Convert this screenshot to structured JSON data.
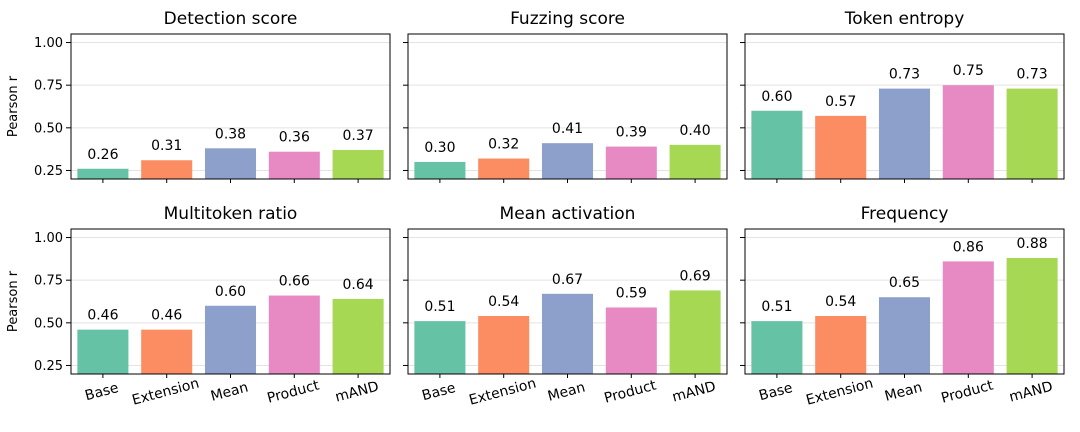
{
  "figure": {
    "y_axis_label": "Pearson r",
    "yticks": [
      "0.25",
      "0.50",
      "0.75",
      "1.00"
    ],
    "categories": [
      "Base",
      "Extension",
      "Mean",
      "Product",
      "mAND"
    ],
    "bar_colors": [
      "#66c2a5",
      "#fc8d62",
      "#8da0cb",
      "#e78ac3",
      "#a6d854"
    ]
  },
  "chart_data": [
    {
      "type": "bar",
      "title": "Detection score",
      "categories": [
        "Base",
        "Extension",
        "Mean",
        "Product",
        "mAND"
      ],
      "values": [
        0.26,
        0.31,
        0.38,
        0.36,
        0.37
      ],
      "labels": [
        "0.26",
        "0.31",
        "0.38",
        "0.36",
        "0.37"
      ],
      "ylabel": "Pearson r",
      "ylim": [
        0.2,
        1.05
      ],
      "grid": true
    },
    {
      "type": "bar",
      "title": "Fuzzing score",
      "categories": [
        "Base",
        "Extension",
        "Mean",
        "Product",
        "mAND"
      ],
      "values": [
        0.3,
        0.32,
        0.41,
        0.39,
        0.4
      ],
      "labels": [
        "0.30",
        "0.32",
        "0.41",
        "0.39",
        "0.40"
      ],
      "ylabel": "",
      "ylim": [
        0.2,
        1.05
      ],
      "grid": true
    },
    {
      "type": "bar",
      "title": "Token entropy",
      "categories": [
        "Base",
        "Extension",
        "Mean",
        "Product",
        "mAND"
      ],
      "values": [
        0.6,
        0.57,
        0.73,
        0.75,
        0.73
      ],
      "labels": [
        "0.60",
        "0.57",
        "0.73",
        "0.75",
        "0.73"
      ],
      "ylabel": "",
      "ylim": [
        0.2,
        1.05
      ],
      "grid": true
    },
    {
      "type": "bar",
      "title": "Multitoken ratio",
      "categories": [
        "Base",
        "Extension",
        "Mean",
        "Product",
        "mAND"
      ],
      "values": [
        0.46,
        0.46,
        0.6,
        0.66,
        0.64
      ],
      "labels": [
        "0.46",
        "0.46",
        "0.60",
        "0.66",
        "0.64"
      ],
      "ylabel": "Pearson r",
      "ylim": [
        0.2,
        1.05
      ],
      "grid": true
    },
    {
      "type": "bar",
      "title": "Mean activation",
      "categories": [
        "Base",
        "Extension",
        "Mean",
        "Product",
        "mAND"
      ],
      "values": [
        0.51,
        0.54,
        0.67,
        0.59,
        0.69
      ],
      "labels": [
        "0.51",
        "0.54",
        "0.67",
        "0.59",
        "0.69"
      ],
      "ylabel": "",
      "ylim": [
        0.2,
        1.05
      ],
      "grid": true
    },
    {
      "type": "bar",
      "title": "Frequency",
      "categories": [
        "Base",
        "Extension",
        "Mean",
        "Product",
        "mAND"
      ],
      "values": [
        0.51,
        0.54,
        0.65,
        0.86,
        0.88
      ],
      "labels": [
        "0.51",
        "0.54",
        "0.65",
        "0.86",
        "0.88"
      ],
      "ylabel": "",
      "ylim": [
        0.2,
        1.05
      ],
      "grid": true
    }
  ]
}
